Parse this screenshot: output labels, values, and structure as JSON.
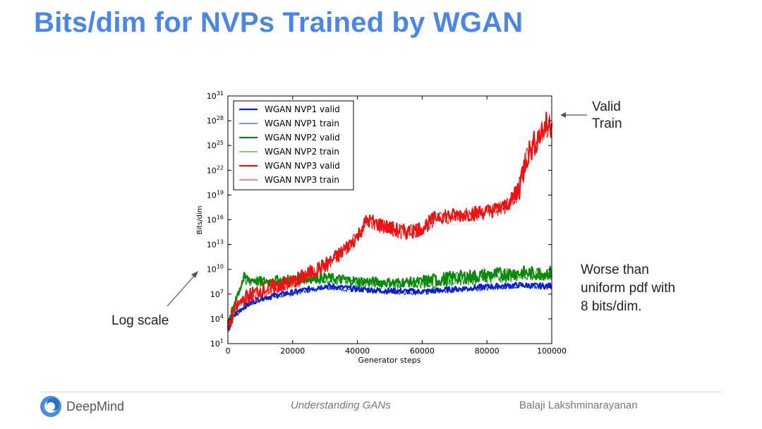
{
  "slide": {
    "title": "Bits/dim for NVPs Trained by WGAN"
  },
  "annotations": {
    "valid_train": [
      "Valid",
      "Train"
    ],
    "worse": [
      "Worse than",
      "uniform pdf with",
      "8 bits/dim."
    ],
    "log_scale": "Log scale"
  },
  "footer": {
    "brand": "DeepMind",
    "center": "Understanding GANs",
    "right": "Balaji Lakshminarayanan"
  },
  "colors": {
    "title": "#4a86e8",
    "nvp1": "#0a1fcc",
    "nvp2": "#0a8a0a",
    "nvp3": "#ee1111"
  },
  "chart_data": {
    "type": "line",
    "xlabel": "Generator steps",
    "ylabel": "Bits/dim",
    "yscale": "log",
    "xlim": [
      0,
      100000
    ],
    "ylim_exp": [
      1,
      31
    ],
    "xticks": [
      0,
      20000,
      40000,
      60000,
      80000,
      100000
    ],
    "ytick_exps": [
      1,
      4,
      7,
      10,
      13,
      16,
      19,
      22,
      25,
      28,
      31
    ],
    "legend_loc": "upper-left",
    "series": [
      {
        "name": "WGAN NVP1 valid",
        "color": "#0a1fcc",
        "width": 2.2,
        "x": [
          0,
          2000,
          5000,
          10000,
          20000,
          30000,
          40000,
          50000,
          60000,
          70000,
          80000,
          90000,
          95000,
          100000
        ],
        "log10_y": [
          2.5,
          4.5,
          5.5,
          6.5,
          7.2,
          8.0,
          7.6,
          7.4,
          7.3,
          7.6,
          7.9,
          8.1,
          8.0,
          8.0
        ]
      },
      {
        "name": "WGAN NVP1 train",
        "color": "#0a1fcc",
        "width": 1.0,
        "x": [
          0,
          2000,
          5000,
          10000,
          20000,
          30000,
          40000,
          50000,
          60000,
          70000,
          80000,
          90000,
          95000,
          100000
        ],
        "log10_y": [
          2.4,
          4.3,
          5.4,
          6.4,
          7.1,
          7.9,
          7.5,
          7.3,
          7.2,
          7.5,
          7.8,
          8.0,
          7.9,
          7.9
        ]
      },
      {
        "name": "WGAN NVP2 valid",
        "color": "#0a8a0a",
        "width": 2.2,
        "x": [
          0,
          2000,
          5000,
          10000,
          20000,
          30000,
          40000,
          50000,
          60000,
          70000,
          80000,
          90000,
          95000,
          100000
        ],
        "log10_y": [
          3.0,
          6.0,
          9.0,
          8.5,
          8.8,
          9.0,
          8.6,
          8.4,
          8.5,
          9.0,
          9.3,
          9.6,
          9.5,
          9.6
        ]
      },
      {
        "name": "WGAN NVP2 train",
        "color": "#0a8a0a",
        "width": 1.0,
        "x": [
          0,
          2000,
          5000,
          10000,
          20000,
          30000,
          40000,
          50000,
          60000,
          70000,
          80000,
          90000,
          95000,
          100000
        ],
        "log10_y": [
          2.9,
          5.8,
          8.8,
          8.3,
          8.6,
          8.8,
          8.4,
          8.2,
          8.3,
          8.8,
          9.1,
          9.4,
          9.3,
          9.4
        ]
      },
      {
        "name": "WGAN NVP3 valid",
        "color": "#ee1111",
        "width": 2.2,
        "x": [
          0,
          2000,
          5000,
          10000,
          20000,
          30000,
          35000,
          40000,
          43000,
          50000,
          55000,
          60000,
          65000,
          70000,
          80000,
          85000,
          88000,
          90000,
          92000,
          95000,
          98000,
          100000
        ],
        "log10_y": [
          3.0,
          5.0,
          6.5,
          7.5,
          8.5,
          10.5,
          12.0,
          14.0,
          16.0,
          15.0,
          14.5,
          15.0,
          16.5,
          16.5,
          17.0,
          17.5,
          18.5,
          20.0,
          23.5,
          25.5,
          27.5,
          27.5
        ]
      },
      {
        "name": "WGAN NVP3 train",
        "color": "#ee1111",
        "width": 1.0,
        "x": [
          0,
          2000,
          5000,
          10000,
          20000,
          30000,
          35000,
          40000,
          43000,
          50000,
          55000,
          60000,
          65000,
          70000,
          80000,
          85000,
          88000,
          90000,
          92000,
          95000,
          98000,
          100000
        ],
        "log10_y": [
          2.9,
          4.9,
          6.4,
          7.4,
          8.4,
          10.4,
          11.9,
          13.9,
          15.8,
          14.9,
          14.4,
          14.9,
          16.4,
          16.4,
          16.9,
          17.4,
          18.4,
          19.9,
          23.3,
          25.3,
          27.3,
          27.3
        ]
      }
    ]
  }
}
